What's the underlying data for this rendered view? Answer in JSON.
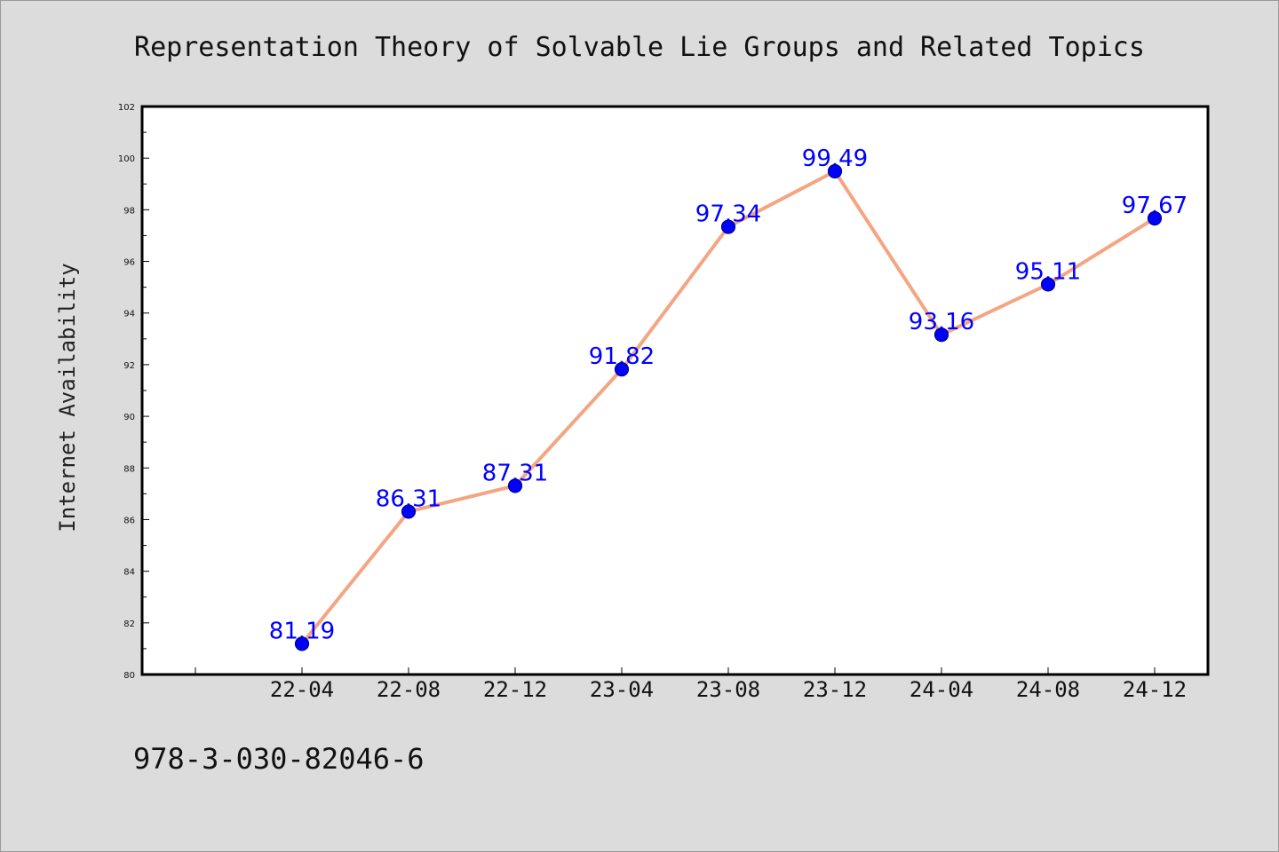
{
  "chart_data": {
    "type": "line",
    "title": "Representation Theory of Solvable Lie Groups and Related Topics",
    "xlabel": "",
    "ylabel": "Internet Availability",
    "categories": [
      "22-04",
      "22-08",
      "22-12",
      "23-04",
      "23-08",
      "23-12",
      "24-04",
      "24-08",
      "24-12"
    ],
    "series": [
      {
        "values": [
          81.19,
          86.31,
          87.31,
          91.82,
          97.34,
          99.49,
          93.16,
          95.11,
          97.67
        ]
      }
    ],
    "ylim": [
      80,
      102
    ],
    "yticks": [
      80,
      82,
      84,
      86,
      88,
      90,
      92,
      94,
      96,
      98,
      100,
      102
    ],
    "grid": false,
    "legend": "none",
    "data_labels": true,
    "colors": {
      "line": "#f4a582",
      "marker_fill": "#0000ff",
      "marker_edge": "#00008b",
      "data_label": "#0000ff",
      "plot_background": "#ffffff",
      "figure_background": "#dcdcdc"
    }
  },
  "footer": {
    "isbn": "978-3-030-82046-6"
  }
}
